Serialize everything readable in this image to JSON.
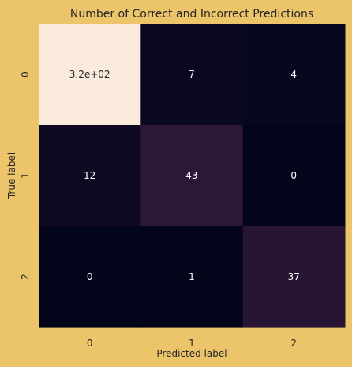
{
  "chart_data": {
    "type": "heatmap",
    "title": "Number of Correct and Incorrect Predictions",
    "xlabel": "Predicted label",
    "ylabel": "True label",
    "x_categories": [
      "0",
      "1",
      "2"
    ],
    "y_categories": [
      "0",
      "1",
      "2"
    ],
    "values": [
      [
        320,
        7,
        4
      ],
      [
        12,
        43,
        0
      ],
      [
        0,
        1,
        37
      ]
    ],
    "cell_labels": [
      [
        "3.2e+02",
        "7",
        "4"
      ],
      [
        "12",
        "43",
        "0"
      ],
      [
        "0",
        "1",
        "37"
      ]
    ],
    "colorbar": false,
    "colormap": "rocket",
    "colors": {
      "background": "#ecc56b",
      "low": "#03051a",
      "high": "#faebdd",
      "text_dark": "#262626",
      "text_light": "#ffffff"
    }
  }
}
